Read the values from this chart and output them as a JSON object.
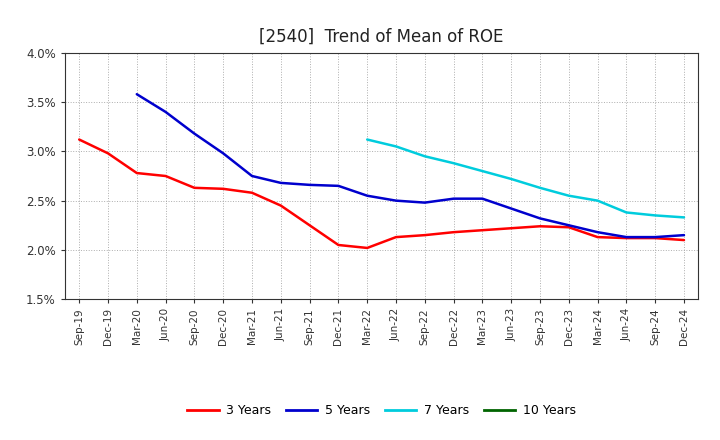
{
  "title": "[2540]  Trend of Mean of ROE",
  "x_labels": [
    "Sep-19",
    "Dec-19",
    "Mar-20",
    "Jun-20",
    "Sep-20",
    "Dec-20",
    "Mar-21",
    "Jun-21",
    "Sep-21",
    "Dec-21",
    "Mar-22",
    "Jun-22",
    "Sep-22",
    "Dec-22",
    "Mar-23",
    "Jun-23",
    "Sep-23",
    "Dec-23",
    "Mar-24",
    "Jun-24",
    "Sep-24",
    "Dec-24"
  ],
  "series": {
    "3 Years": {
      "color": "#ff0000",
      "values": [
        0.0312,
        0.0298,
        0.0278,
        0.0275,
        0.0263,
        0.0262,
        0.0258,
        0.0245,
        0.0225,
        0.0205,
        0.0202,
        0.0213,
        0.0215,
        0.0218,
        0.022,
        0.0222,
        0.0224,
        0.0223,
        0.0213,
        0.0212,
        0.0212,
        0.021
      ]
    },
    "5 Years": {
      "color": "#0000cd",
      "values": [
        null,
        null,
        0.0358,
        0.034,
        0.0318,
        0.0298,
        0.0275,
        0.0268,
        0.0266,
        0.0265,
        0.0255,
        0.025,
        0.0248,
        0.0252,
        0.0252,
        0.0242,
        0.0232,
        0.0225,
        0.0218,
        0.0213,
        0.0213,
        0.0215
      ]
    },
    "7 Years": {
      "color": "#00ccdd",
      "values": [
        null,
        null,
        null,
        null,
        null,
        null,
        null,
        null,
        null,
        null,
        0.0312,
        0.0305,
        0.0295,
        0.0288,
        0.028,
        0.0272,
        0.0263,
        0.0255,
        0.025,
        0.0238,
        0.0235,
        0.0233
      ]
    },
    "10 Years": {
      "color": "#006400",
      "values": [
        null,
        null,
        null,
        null,
        null,
        null,
        null,
        null,
        null,
        null,
        null,
        null,
        null,
        null,
        null,
        null,
        null,
        null,
        null,
        null,
        null,
        null
      ]
    }
  },
  "ylim": [
    0.015,
    0.04
  ],
  "yticks": [
    0.015,
    0.02,
    0.025,
    0.03,
    0.035,
    0.04
  ],
  "ytick_labels": [
    "1.5%",
    "2.0%",
    "2.5%",
    "3.0%",
    "3.5%",
    "4.0%"
  ],
  "background_color": "#ffffff",
  "grid_color": "#999999",
  "title_fontsize": 12,
  "legend_labels": [
    "3 Years",
    "5 Years",
    "7 Years",
    "10 Years"
  ],
  "legend_colors": [
    "#ff0000",
    "#0000cd",
    "#00ccdd",
    "#006400"
  ]
}
